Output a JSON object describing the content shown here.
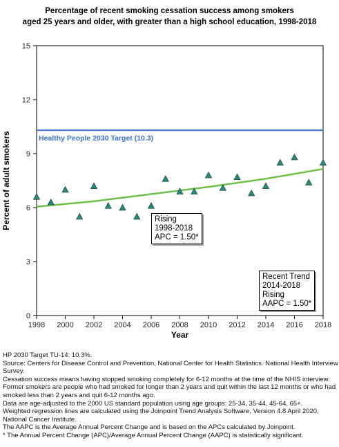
{
  "chart_data": {
    "type": "scatter",
    "title": "Percentage of recent smoking cessation success among  smokers",
    "subtitle": "aged 25 years and older, with greater than a high school education, 1998-2018",
    "xlabel": "Year",
    "ylabel": "Percent of adult smokers",
    "xlim": [
      1998,
      2018
    ],
    "ylim": [
      0,
      15
    ],
    "x_ticks": [
      "1998",
      "2000",
      "2002",
      "2004",
      "2006",
      "2008",
      "2010",
      "2012",
      "2014",
      "2016",
      "2018"
    ],
    "y_ticks": [
      "0",
      "3",
      "6",
      "9",
      "12",
      "15"
    ],
    "grid": false,
    "x": [
      1998,
      1999,
      2000,
      2001,
      2002,
      2003,
      2004,
      2005,
      2006,
      2007,
      2008,
      2009,
      2010,
      2011,
      2012,
      2013,
      2014,
      2015,
      2016,
      2017,
      2018
    ],
    "values": [
      6.6,
      6.3,
      7.0,
      5.5,
      7.2,
      6.1,
      6.0,
      5.5,
      6.1,
      7.6,
      6.9,
      6.9,
      7.8,
      7.1,
      7.7,
      6.8,
      7.2,
      8.5,
      8.8,
      7.4,
      8.5
    ],
    "regression": {
      "x": [
        1998,
        2002,
        2006,
        2010,
        2014,
        2018
      ],
      "y": [
        6.05,
        6.35,
        6.75,
        7.15,
        7.6,
        8.15
      ]
    },
    "target": {
      "value": 10.3,
      "label": "Healthy People 2030 Target (10.3)",
      "color": "#3b6fcf"
    },
    "point_color": "#2a8a7a",
    "line_color": "#6ec04a",
    "annotations": {
      "overall": [
        "Rising",
        "1998-2018",
        "APC =  1.50*"
      ],
      "recent": [
        "Recent Trend",
        "2014-2018",
        "Rising",
        "AAPC =  1.50*"
      ]
    }
  },
  "footnotes": [
    "HP 2030 Target TU-14: 10.3%.",
    "Source: Centers for Disease Control and Prevention, National Center for Health Statistics. National Health Interview Survey.",
    "Cessation success means having stopped smoking completely for 6-12 months at the time of the NHIS interview. Former smokers are people who had smoked for longer than 2 years and quit within the last 12 months or who had smoked less than 2 years and quit 6-12 months ago.",
    "Data are age-adjusted to the 2000 US standard population using age groups: 25-34, 35-44, 45-64, 65+.",
    "Weighted regression lines are calculated using the Joinpoint Trend Analysis Software, Version 4.8 April 2020, National Cancer Institute.",
    "The AAPC is the Average Annual Percent Change and is based on the APCs calculated by Joinpoint.",
    "* The Annual Percent Change (APC)/Average Annual Percent Change (AAPC) is statistically significant."
  ]
}
